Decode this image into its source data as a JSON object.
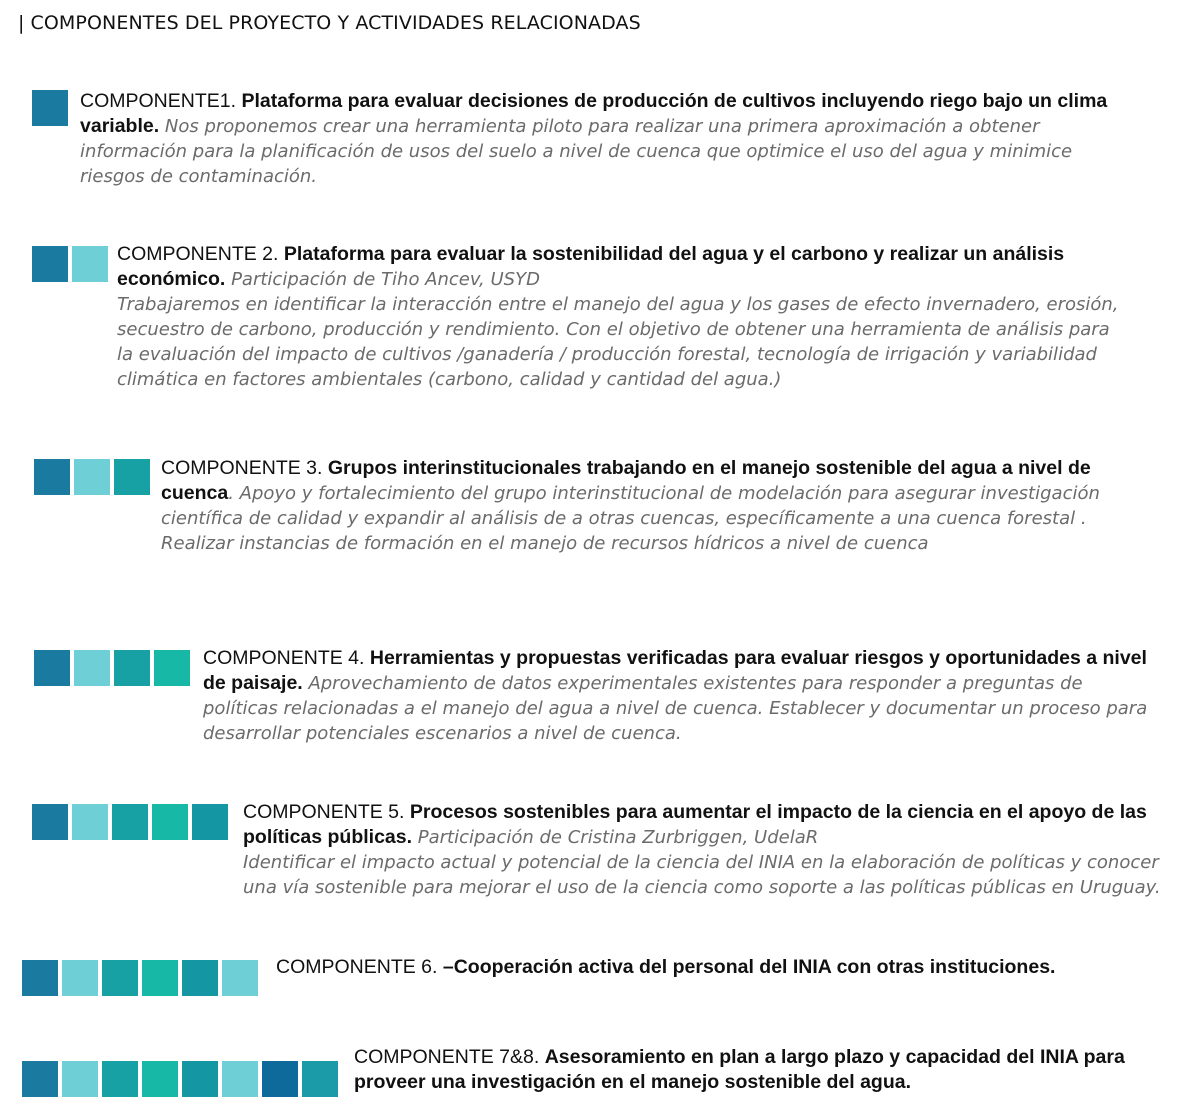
{
  "page": {
    "title": "COMPONENTES DEL PROYECTO Y ACTIVIDADES RELACIONADAS"
  },
  "colors": {
    "palette": [
      "#1a7aa0",
      "#6ecfd6",
      "#17a1a5",
      "#17b8a6",
      "#1596a3",
      "#6ecfd6",
      "#0f6a9c",
      "#1b9aa8"
    ]
  },
  "components": [
    {
      "label": "COMPONENTE1. ",
      "bold": "Plataforma para evaluar decisiones de  producción de cultivos incluyendo riego  bajo un clima variable.",
      "italic": " Nos proponemos crear una herramienta piloto para realizar una primera aproximación a obtener información para la planificación de usos del suelo a nivel de cuenca que optimice el uso del agua y minimice riesgos de contaminación.",
      "description": ""
    },
    {
      "label": "COMPONENTE 2. ",
      "bold": "Plataforma para evaluar la sostenibilidad del agua y el carbono  y realizar un análisis económico.",
      "italic": " Participación de Tiho Ancev, USYD",
      "description": "Trabajaremos en identificar la interacción entre el manejo del agua y los gases de efecto invernadero, erosión, secuestro de carbono, producción y rendimiento. Con el objetivo de obtener una herramienta de análisis para la evaluación del impacto de cultivos /ganadería / producción forestal, tecnología de irrigación y variabilidad climática en factores ambientales (carbono, calidad y cantidad del agua.)"
    },
    {
      "label": "COMPONENTE 3. ",
      "bold": "Grupos interinstitucionales trabajando en el manejo sostenible del  agua a nivel de cuenca",
      "italic": ".  Apoyo y fortalecimiento del grupo interinstitucional  de modelación para asegurar investigación científica de calidad y expandir al análisis de a otras cuencas, específicamente a una cuenca forestal . Realizar instancias de formación en el manejo de recursos hídricos a nivel de cuenca",
      "description": ""
    },
    {
      "label": "COMPONENTE 4. ",
      "bold": "Herramientas y propuestas verificadas para evaluar riesgos y oportunidades a nivel de paisaje.",
      "italic": " Aprovechamiento de datos experimentales existentes para responder a preguntas de políticas relacionadas a el manejo del agua a nivel de cuenca. Establecer y documentar un proceso para desarrollar potenciales escenarios a nivel de cuenca.",
      "description": ""
    },
    {
      "label": "COMPONENTE 5. ",
      "bold": "Procesos sostenibles para aumentar el impacto de la ciencia en el apoyo de las políticas públicas.",
      "italic": " Participación de Cristina Zurbriggen, UdelaR",
      "description": " Identificar el impacto actual y potencial de la ciencia del INIA en la elaboración de políticas y conocer una vía sostenible para mejorar el uso de la ciencia como soporte a las políticas públicas en Uruguay."
    },
    {
      "label": "COMPONENTE 6. ",
      "bold": "–Cooperación activa del personal del INIA con otras instituciones.",
      "italic": "",
      "description": ""
    },
    {
      "label": "COMPONENTE 7&8. ",
      "bold": "Asesoramiento en plan a largo plazo y capacidad del INIA para proveer una investigación en el manejo sostenible del agua.",
      "italic": "",
      "description": ""
    }
  ]
}
